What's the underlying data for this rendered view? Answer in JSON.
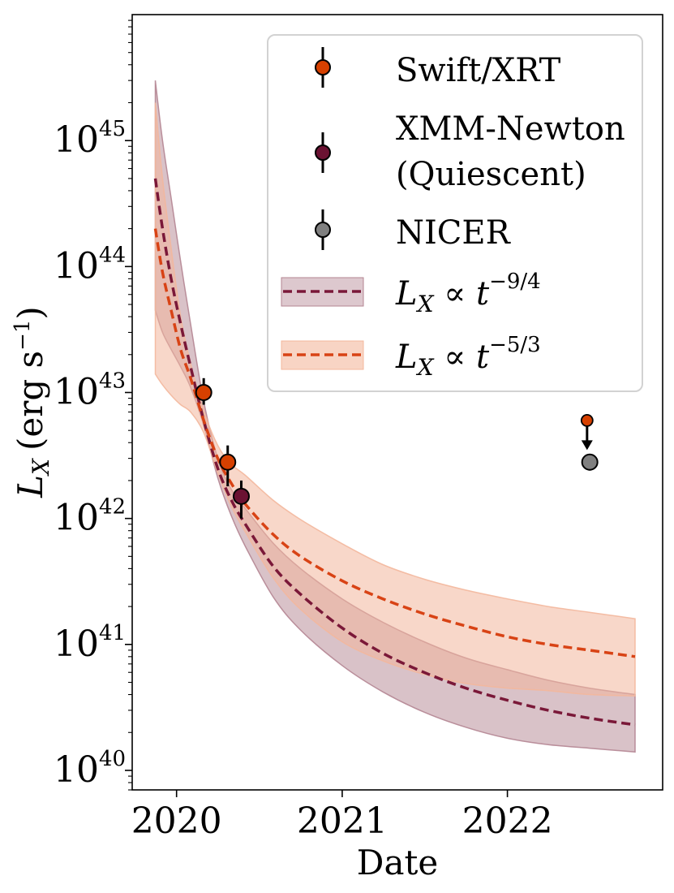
{
  "chart_data": {
    "type": "scatter",
    "xlabel": "Date",
    "ylabel": {
      "main": "L",
      "sub": "X",
      "units": "(erg s",
      "units_exp": "−1",
      "units_close": ")"
    },
    "y_scale": "log",
    "ylim": [
      7e+39,
      1e+46
    ],
    "xlim": [
      "2019-09-25",
      "2022-12-10"
    ],
    "x_ticks": [
      {
        "date": "2020-01-01",
        "label": "2020"
      },
      {
        "date": "2021-01-01",
        "label": "2021"
      },
      {
        "date": "2022-01-01",
        "label": "2022"
      }
    ],
    "y_ticks": [
      {
        "value": 1e+40,
        "base": "10",
        "exp": "40"
      },
      {
        "value": 1e+41,
        "base": "10",
        "exp": "41"
      },
      {
        "value": 1e+42,
        "base": "10",
        "exp": "42"
      },
      {
        "value": 1e+43,
        "base": "10",
        "exp": "43"
      },
      {
        "value": 1e+44,
        "base": "10",
        "exp": "44"
      },
      {
        "value": 1e+45,
        "base": "10",
        "exp": "45"
      }
    ],
    "grid": false,
    "legend_position": "top-right",
    "colors": {
      "swift": "#d64000",
      "xmm": "#6b1232",
      "nicer": "#808080",
      "fit_94_line": "#7a1838",
      "fit_94_band": "#b48592",
      "fit_53_line": "#d84315",
      "fit_53_band": "#f3b79c"
    },
    "series": [
      {
        "name": "Swift/XRT",
        "kind": "points",
        "color": "#d64000",
        "points": [
          {
            "x": "2020-03-01",
            "y": 1e+43,
            "err_lo": 8e+42,
            "err_hi": 1.3e+43
          },
          {
            "x": "2020-04-23",
            "y": 2.8e+42,
            "err_lo": 1.8e+42,
            "err_hi": 3.8e+42
          }
        ]
      },
      {
        "name": "XMM-Newton (Quiescent)",
        "legend_lines": [
          "XMM-Newton",
          "(Quiescent)"
        ],
        "kind": "points",
        "color": "#6b1232",
        "points": [
          {
            "x": "2020-05-23",
            "y": 1.5e+42,
            "err_lo": 1e+42,
            "err_hi": 2e+42
          }
        ]
      },
      {
        "name": "NICER",
        "kind": "points",
        "color": "#808080",
        "points": [
          {
            "x": "2022-07-02",
            "y": 2.8e+42,
            "err_lo": 2.4e+42,
            "err_hi": 3.1e+42
          }
        ]
      },
      {
        "name": "Swift/XRT upper limit",
        "kind": "upper_limit",
        "color": "#d64000",
        "points": [
          {
            "x": "2022-06-26",
            "y": 6e+42,
            "arrow_to": 3.6e+42
          }
        ]
      },
      {
        "name": "L_X ∝ t^{-9/4}",
        "legend_label": {
          "main": "L",
          "sub": "X",
          "mid": " ∝ t",
          "exp": "−9/4"
        },
        "kind": "fit",
        "color": "#7a1838",
        "band_color": "#b48592",
        "x": [
          "2019-11-15",
          "2019-12-01",
          "2019-12-20",
          "2020-01-10",
          "2020-02-01",
          "2020-03-01",
          "2020-04-01",
          "2020-05-01",
          "2020-06-01",
          "2020-08-01",
          "2020-10-01",
          "2021-01-01",
          "2021-04-01",
          "2021-07-01",
          "2021-10-01",
          "2022-01-01",
          "2022-04-01",
          "2022-07-01",
          "2022-10-10"
        ],
        "y": [
          5e+44,
          2e+44,
          8e+43,
          3.5e+43,
          1.6e+43,
          6e+42,
          2.5e+42,
          1.4e+42,
          9e+41,
          4.2e+41,
          2.5e+41,
          1.35e+41,
          8.5e+40,
          6e+40,
          4.5e+40,
          3.6e+40,
          3e+40,
          2.6e+40,
          2.3e+40
        ],
        "band_lo": [
          4.5e+43,
          3e+43,
          2.2e+43,
          1.6e+43,
          1.1e+43,
          5.5e+42,
          2.1e+42,
          1.05e+42,
          6e+41,
          2.4e+41,
          1.3e+41,
          6.8e+40,
          4.2e+40,
          2.9e+40,
          2.2e+40,
          1.8e+40,
          1.6e+40,
          1.5e+40,
          1.4e+40
        ],
        "band_hi": [
          3e+45,
          1e+45,
          3.5e+44,
          1.1e+44,
          3.5e+43,
          8.5e+42,
          3e+42,
          1.7e+42,
          1.2e+42,
          6.4e+41,
          4e+41,
          2.3e+41,
          1.5e+41,
          1.05e+41,
          7.8e+40,
          6.3e+40,
          5.2e+40,
          4.5e+40,
          4e+40
        ]
      },
      {
        "name": "L_X ∝ t^{-5/3}",
        "legend_label": {
          "main": "L",
          "sub": "X",
          "mid": " ∝ t",
          "exp": "−5/3"
        },
        "kind": "fit",
        "color": "#d84315",
        "band_color": "#f3b79c",
        "x": [
          "2019-11-15",
          "2019-12-01",
          "2019-12-20",
          "2020-01-10",
          "2020-02-01",
          "2020-03-01",
          "2020-04-01",
          "2020-05-01",
          "2020-06-01",
          "2020-08-01",
          "2020-10-01",
          "2021-01-01",
          "2021-04-01",
          "2021-07-01",
          "2021-10-01",
          "2022-01-01",
          "2022-04-01",
          "2022-07-01",
          "2022-10-10"
        ],
        "y": [
          2e+44,
          9e+43,
          4.5e+43,
          2.2e+43,
          1.3e+43,
          6e+42,
          3e+42,
          1.9e+42,
          1.3e+42,
          7.5e+41,
          5e+41,
          3.2e+41,
          2.3e+41,
          1.75e+41,
          1.4e+41,
          1.15e+41,
          1e+41,
          9e+40,
          8e+40
        ],
        "band_lo": [
          1.4e+43,
          1.15e+43,
          9.5e+42,
          8e+42,
          7e+42,
          4.8e+42,
          2.3e+42,
          1.25e+42,
          7.8e+41,
          3.4e+41,
          1.9e+41,
          1.05e+41,
          7.4e+40,
          5.8e+40,
          4.9e+40,
          4.5e+40,
          4.3e+40,
          4e+40,
          3.9e+40
        ],
        "band_hi": [
          2e+45,
          5e+44,
          1.4e+44,
          4e+43,
          1.7e+43,
          7.2e+42,
          3.8e+42,
          2.7e+42,
          2.2e+42,
          1.4e+42,
          9.8e+41,
          6.3e+41,
          4.3e+41,
          3.3e+41,
          2.7e+41,
          2.3e+41,
          2e+41,
          1.8e+41,
          1.6e+41
        ]
      }
    ]
  }
}
